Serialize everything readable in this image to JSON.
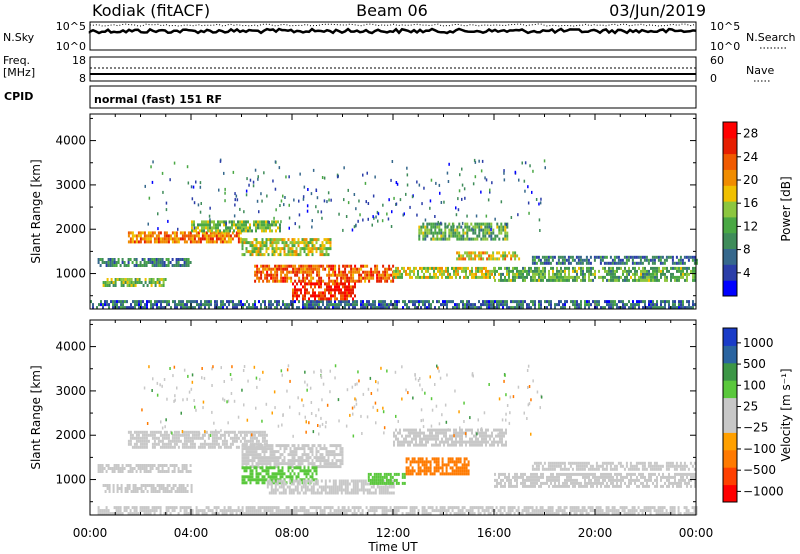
{
  "header": {
    "station": "Kodiak (fitACF)",
    "beam": "Beam 06",
    "date": "03/Jun/2019"
  },
  "top_panels": {
    "nsky_label": "N.Sky",
    "nsearch_label": "N.Search",
    "nsky_ticks": [
      "10^5",
      "10^0"
    ],
    "nsearch_ticks": [
      "10^5",
      "10^0"
    ],
    "freq_label": "Freq.",
    "freq_unit": "[MHz]",
    "freq_ticks": [
      "18",
      "8"
    ],
    "nave_label": "Nave",
    "nave_ticks": [
      "60",
      "0"
    ],
    "cpid_label": "CPID",
    "cpid_value": "normal (fast) 151 RF"
  },
  "colors": {
    "power_scale": [
      "#0000ff",
      "#2b3ea8",
      "#36688c",
      "#3f8c5a",
      "#4aa844",
      "#8cc63f",
      "#f0c000",
      "#f08c00",
      "#f05a00",
      "#e61e00",
      "#ff0000"
    ],
    "velocity_scale": [
      "#ff0000",
      "#ff4000",
      "#ff7a00",
      "#ffa000",
      "#c8c8c8",
      "#c8c8c8",
      "#5ac83c",
      "#3c9646",
      "#2a64a0",
      "#1a3cc8"
    ],
    "ground_scatter": "#c8c8c8"
  },
  "chart_data": [
    {
      "type": "heatmap",
      "name": "power-panel",
      "x_ticks": [
        "00:00",
        "04:00",
        "08:00",
        "12:00",
        "16:00",
        "20:00",
        "00:00"
      ],
      "x_range_hours": [
        0,
        24
      ],
      "ylabel": "Slant Range [km]",
      "y_ticks": [
        1000,
        2000,
        3000,
        4000
      ],
      "ylim": [
        200,
        4600
      ],
      "colorbar_label": "Power [dB]",
      "colorbar_ticks": [
        "4",
        "8",
        "12",
        "16",
        "20",
        "24",
        "28"
      ],
      "colorbar_range": [
        0,
        30
      ],
      "bands": [
        {
          "t0": 0.0,
          "t1": 24.0,
          "r0": 250,
          "r1": 400,
          "value": 6
        },
        {
          "t0": 0.5,
          "t1": 3.0,
          "r0": 700,
          "r1": 900,
          "value": 14
        },
        {
          "t0": 0.3,
          "t1": 4.0,
          "r0": 1150,
          "r1": 1350,
          "value": 8
        },
        {
          "t0": 1.5,
          "t1": 6.0,
          "r0": 1700,
          "r1": 1950,
          "value": 22
        },
        {
          "t0": 4.0,
          "t1": 7.5,
          "r0": 1950,
          "r1": 2200,
          "value": 14
        },
        {
          "t0": 6.0,
          "t1": 9.5,
          "r0": 1400,
          "r1": 1800,
          "value": 16
        },
        {
          "t0": 6.5,
          "t1": 12.0,
          "r0": 800,
          "r1": 1200,
          "value": 24
        },
        {
          "t0": 8.0,
          "t1": 10.5,
          "r0": 450,
          "r1": 800,
          "value": 27
        },
        {
          "t0": 12.0,
          "t1": 16.0,
          "r0": 900,
          "r1": 1150,
          "value": 16
        },
        {
          "t0": 13.0,
          "t1": 16.5,
          "r0": 1800,
          "r1": 2150,
          "value": 12
        },
        {
          "t0": 14.5,
          "t1": 17.0,
          "r0": 1300,
          "r1": 1500,
          "value": 18
        },
        {
          "t0": 16.0,
          "t1": 24.0,
          "r0": 850,
          "r1": 1150,
          "value": 12
        },
        {
          "t0": 17.5,
          "t1": 24.0,
          "r0": 1200,
          "r1": 1400,
          "value": 7
        }
      ]
    },
    {
      "type": "heatmap",
      "name": "velocity-panel",
      "x_ticks": [
        "00:00",
        "04:00",
        "08:00",
        "12:00",
        "16:00",
        "20:00",
        "00:00"
      ],
      "x_range_hours": [
        0,
        24
      ],
      "xlabel": "Time UT",
      "ylabel": "Slant Range [km]",
      "y_ticks": [
        1000,
        2000,
        3000,
        4000
      ],
      "ylim": [
        200,
        4600
      ],
      "colorbar_label": "Velocity [m s⁻¹]",
      "colorbar_ticks": [
        "1000",
        "500",
        "100",
        "25",
        "−25",
        "−100",
        "−500",
        "−1000"
      ],
      "bands": [
        {
          "t0": 0.3,
          "t1": 24.0,
          "r0": 250,
          "r1": 400,
          "value": 0
        },
        {
          "t0": 0.5,
          "t1": 4.0,
          "r0": 700,
          "r1": 900,
          "value": 0
        },
        {
          "t0": 0.3,
          "t1": 4.0,
          "r0": 1150,
          "r1": 1350,
          "value": 0
        },
        {
          "t0": 1.5,
          "t1": 7.0,
          "r0": 1700,
          "r1": 2100,
          "value": 0
        },
        {
          "t0": 6.0,
          "t1": 10.0,
          "r0": 1300,
          "r1": 1800,
          "value": 0
        },
        {
          "t0": 6.0,
          "t1": 9.0,
          "r0": 900,
          "r1": 1300,
          "value": 60
        },
        {
          "t0": 7.0,
          "t1": 12.0,
          "r0": 700,
          "r1": 1000,
          "value": 0
        },
        {
          "t0": 11.0,
          "t1": 12.5,
          "r0": 900,
          "r1": 1150,
          "value": 80
        },
        {
          "t0": 12.5,
          "t1": 15.0,
          "r0": 1150,
          "r1": 1500,
          "value": -200
        },
        {
          "t0": 12.0,
          "t1": 16.5,
          "r0": 1800,
          "r1": 2150,
          "value": 0
        },
        {
          "t0": 16.0,
          "t1": 24.0,
          "r0": 850,
          "r1": 1150,
          "value": 0
        },
        {
          "t0": 17.5,
          "t1": 24.0,
          "r0": 1200,
          "r1": 1400,
          "value": 0
        }
      ]
    }
  ]
}
